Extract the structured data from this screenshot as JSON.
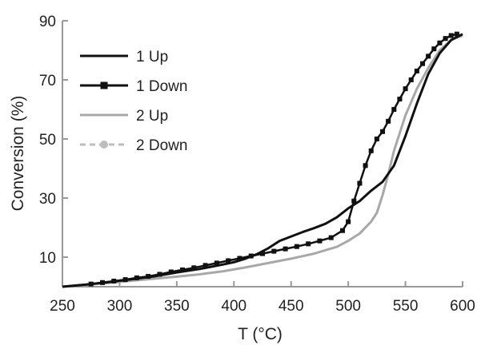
{
  "chart_data": {
    "type": "line",
    "title": "",
    "xlabel": "T (°C)",
    "ylabel": "Conversion (%)",
    "xlim": [
      250,
      600
    ],
    "ylim": [
      0,
      90
    ],
    "xticks": [
      "250",
      "300",
      "350",
      "400",
      "450",
      "500",
      "550",
      "600"
    ],
    "yticks": [
      "10",
      "30",
      "50",
      "70",
      "90"
    ],
    "grid": false,
    "legend_position": "top-left",
    "series": [
      {
        "name": "1 Up",
        "color": "#111111",
        "style": "solid",
        "marker": "none",
        "points": [
          [
            250,
            0
          ],
          [
            270,
            0.7
          ],
          [
            290,
            1.5
          ],
          [
            310,
            2.5
          ],
          [
            330,
            3.5
          ],
          [
            350,
            4.8
          ],
          [
            370,
            6
          ],
          [
            390,
            7.5
          ],
          [
            400,
            8.3
          ],
          [
            410,
            9.5
          ],
          [
            420,
            11
          ],
          [
            430,
            13
          ],
          [
            440,
            15.5
          ],
          [
            450,
            17
          ],
          [
            460,
            18.5
          ],
          [
            470,
            19.8
          ],
          [
            480,
            21.3
          ],
          [
            490,
            23.5
          ],
          [
            500,
            26.5
          ],
          [
            510,
            29
          ],
          [
            520,
            32.5
          ],
          [
            530,
            35.5
          ],
          [
            540,
            41
          ],
          [
            550,
            51
          ],
          [
            560,
            62
          ],
          [
            570,
            72
          ],
          [
            580,
            79
          ],
          [
            590,
            83.5
          ],
          [
            600,
            85.5
          ]
        ]
      },
      {
        "name": "1 Down",
        "color": "#111111",
        "style": "solid",
        "marker": "square",
        "points": [
          [
            250,
            0
          ],
          [
            275,
            0.9
          ],
          [
            285,
            1.4
          ],
          [
            295,
            1.9
          ],
          [
            305,
            2.4
          ],
          [
            315,
            3
          ],
          [
            325,
            3.5
          ],
          [
            335,
            4.2
          ],
          [
            345,
            5
          ],
          [
            355,
            5.7
          ],
          [
            365,
            6.4
          ],
          [
            375,
            7.2
          ],
          [
            385,
            8
          ],
          [
            395,
            8.8
          ],
          [
            405,
            9.6
          ],
          [
            415,
            10.4
          ],
          [
            425,
            11.2
          ],
          [
            435,
            12
          ],
          [
            445,
            12.8
          ],
          [
            455,
            13.6
          ],
          [
            465,
            14.5
          ],
          [
            475,
            15.5
          ],
          [
            485,
            16.6
          ],
          [
            495,
            19
          ],
          [
            500,
            22
          ],
          [
            505,
            29
          ],
          [
            510,
            35
          ],
          [
            515,
            41
          ],
          [
            520,
            46
          ],
          [
            525,
            50
          ],
          [
            530,
            52.5
          ],
          [
            535,
            56
          ],
          [
            540,
            60
          ],
          [
            545,
            63.5
          ],
          [
            550,
            67
          ],
          [
            555,
            70
          ],
          [
            560,
            73
          ],
          [
            565,
            75.5
          ],
          [
            570,
            78
          ],
          [
            575,
            80.5
          ],
          [
            580,
            82.5
          ],
          [
            585,
            84
          ],
          [
            590,
            85
          ],
          [
            595,
            85.5
          ]
        ]
      },
      {
        "name": "2 Up",
        "color": "#a8a8a8",
        "style": "solid",
        "marker": "none",
        "points": [
          [
            250,
            0
          ],
          [
            270,
            0.6
          ],
          [
            290,
            1.3
          ],
          [
            310,
            2
          ],
          [
            330,
            2.7
          ],
          [
            350,
            3.4
          ],
          [
            370,
            4.2
          ],
          [
            390,
            5.2
          ],
          [
            410,
            6.5
          ],
          [
            430,
            8
          ],
          [
            450,
            9.5
          ],
          [
            470,
            11.2
          ],
          [
            490,
            13.5
          ],
          [
            500,
            15.5
          ],
          [
            510,
            18
          ],
          [
            520,
            22
          ],
          [
            525,
            25
          ],
          [
            530,
            31
          ],
          [
            535,
            38
          ],
          [
            540,
            46
          ],
          [
            550,
            58
          ],
          [
            560,
            67
          ],
          [
            570,
            74
          ],
          [
            580,
            80
          ],
          [
            590,
            83.5
          ],
          [
            600,
            85
          ]
        ]
      },
      {
        "name": "2 Down",
        "color": "#bdbdbd",
        "style": "dashed",
        "marker": "circle",
        "points": [
          [
            250,
            0
          ],
          [
            275,
            0.9
          ],
          [
            285,
            1.4
          ],
          [
            295,
            1.9
          ],
          [
            305,
            2.4
          ],
          [
            315,
            3
          ],
          [
            325,
            3.5
          ],
          [
            335,
            4.2
          ],
          [
            345,
            5
          ],
          [
            355,
            5.7
          ],
          [
            365,
            6.4
          ],
          [
            375,
            7.2
          ],
          [
            385,
            8
          ],
          [
            395,
            8.8
          ],
          [
            405,
            9.6
          ],
          [
            415,
            10.4
          ],
          [
            425,
            11.2
          ],
          [
            435,
            12
          ],
          [
            445,
            12.8
          ],
          [
            455,
            13.6
          ],
          [
            465,
            14.5
          ],
          [
            475,
            15.5
          ],
          [
            485,
            16.6
          ],
          [
            495,
            19
          ],
          [
            500,
            22
          ],
          [
            505,
            29
          ],
          [
            510,
            35
          ],
          [
            515,
            41
          ],
          [
            520,
            46
          ],
          [
            525,
            50
          ],
          [
            530,
            52.5
          ],
          [
            535,
            56
          ],
          [
            540,
            60
          ],
          [
            545,
            63.5
          ],
          [
            550,
            67
          ],
          [
            555,
            70
          ],
          [
            560,
            73
          ],
          [
            565,
            75.5
          ],
          [
            570,
            78
          ],
          [
            575,
            80.5
          ],
          [
            580,
            82.5
          ],
          [
            585,
            84
          ],
          [
            590,
            85
          ],
          [
            595,
            85.5
          ]
        ]
      }
    ]
  }
}
